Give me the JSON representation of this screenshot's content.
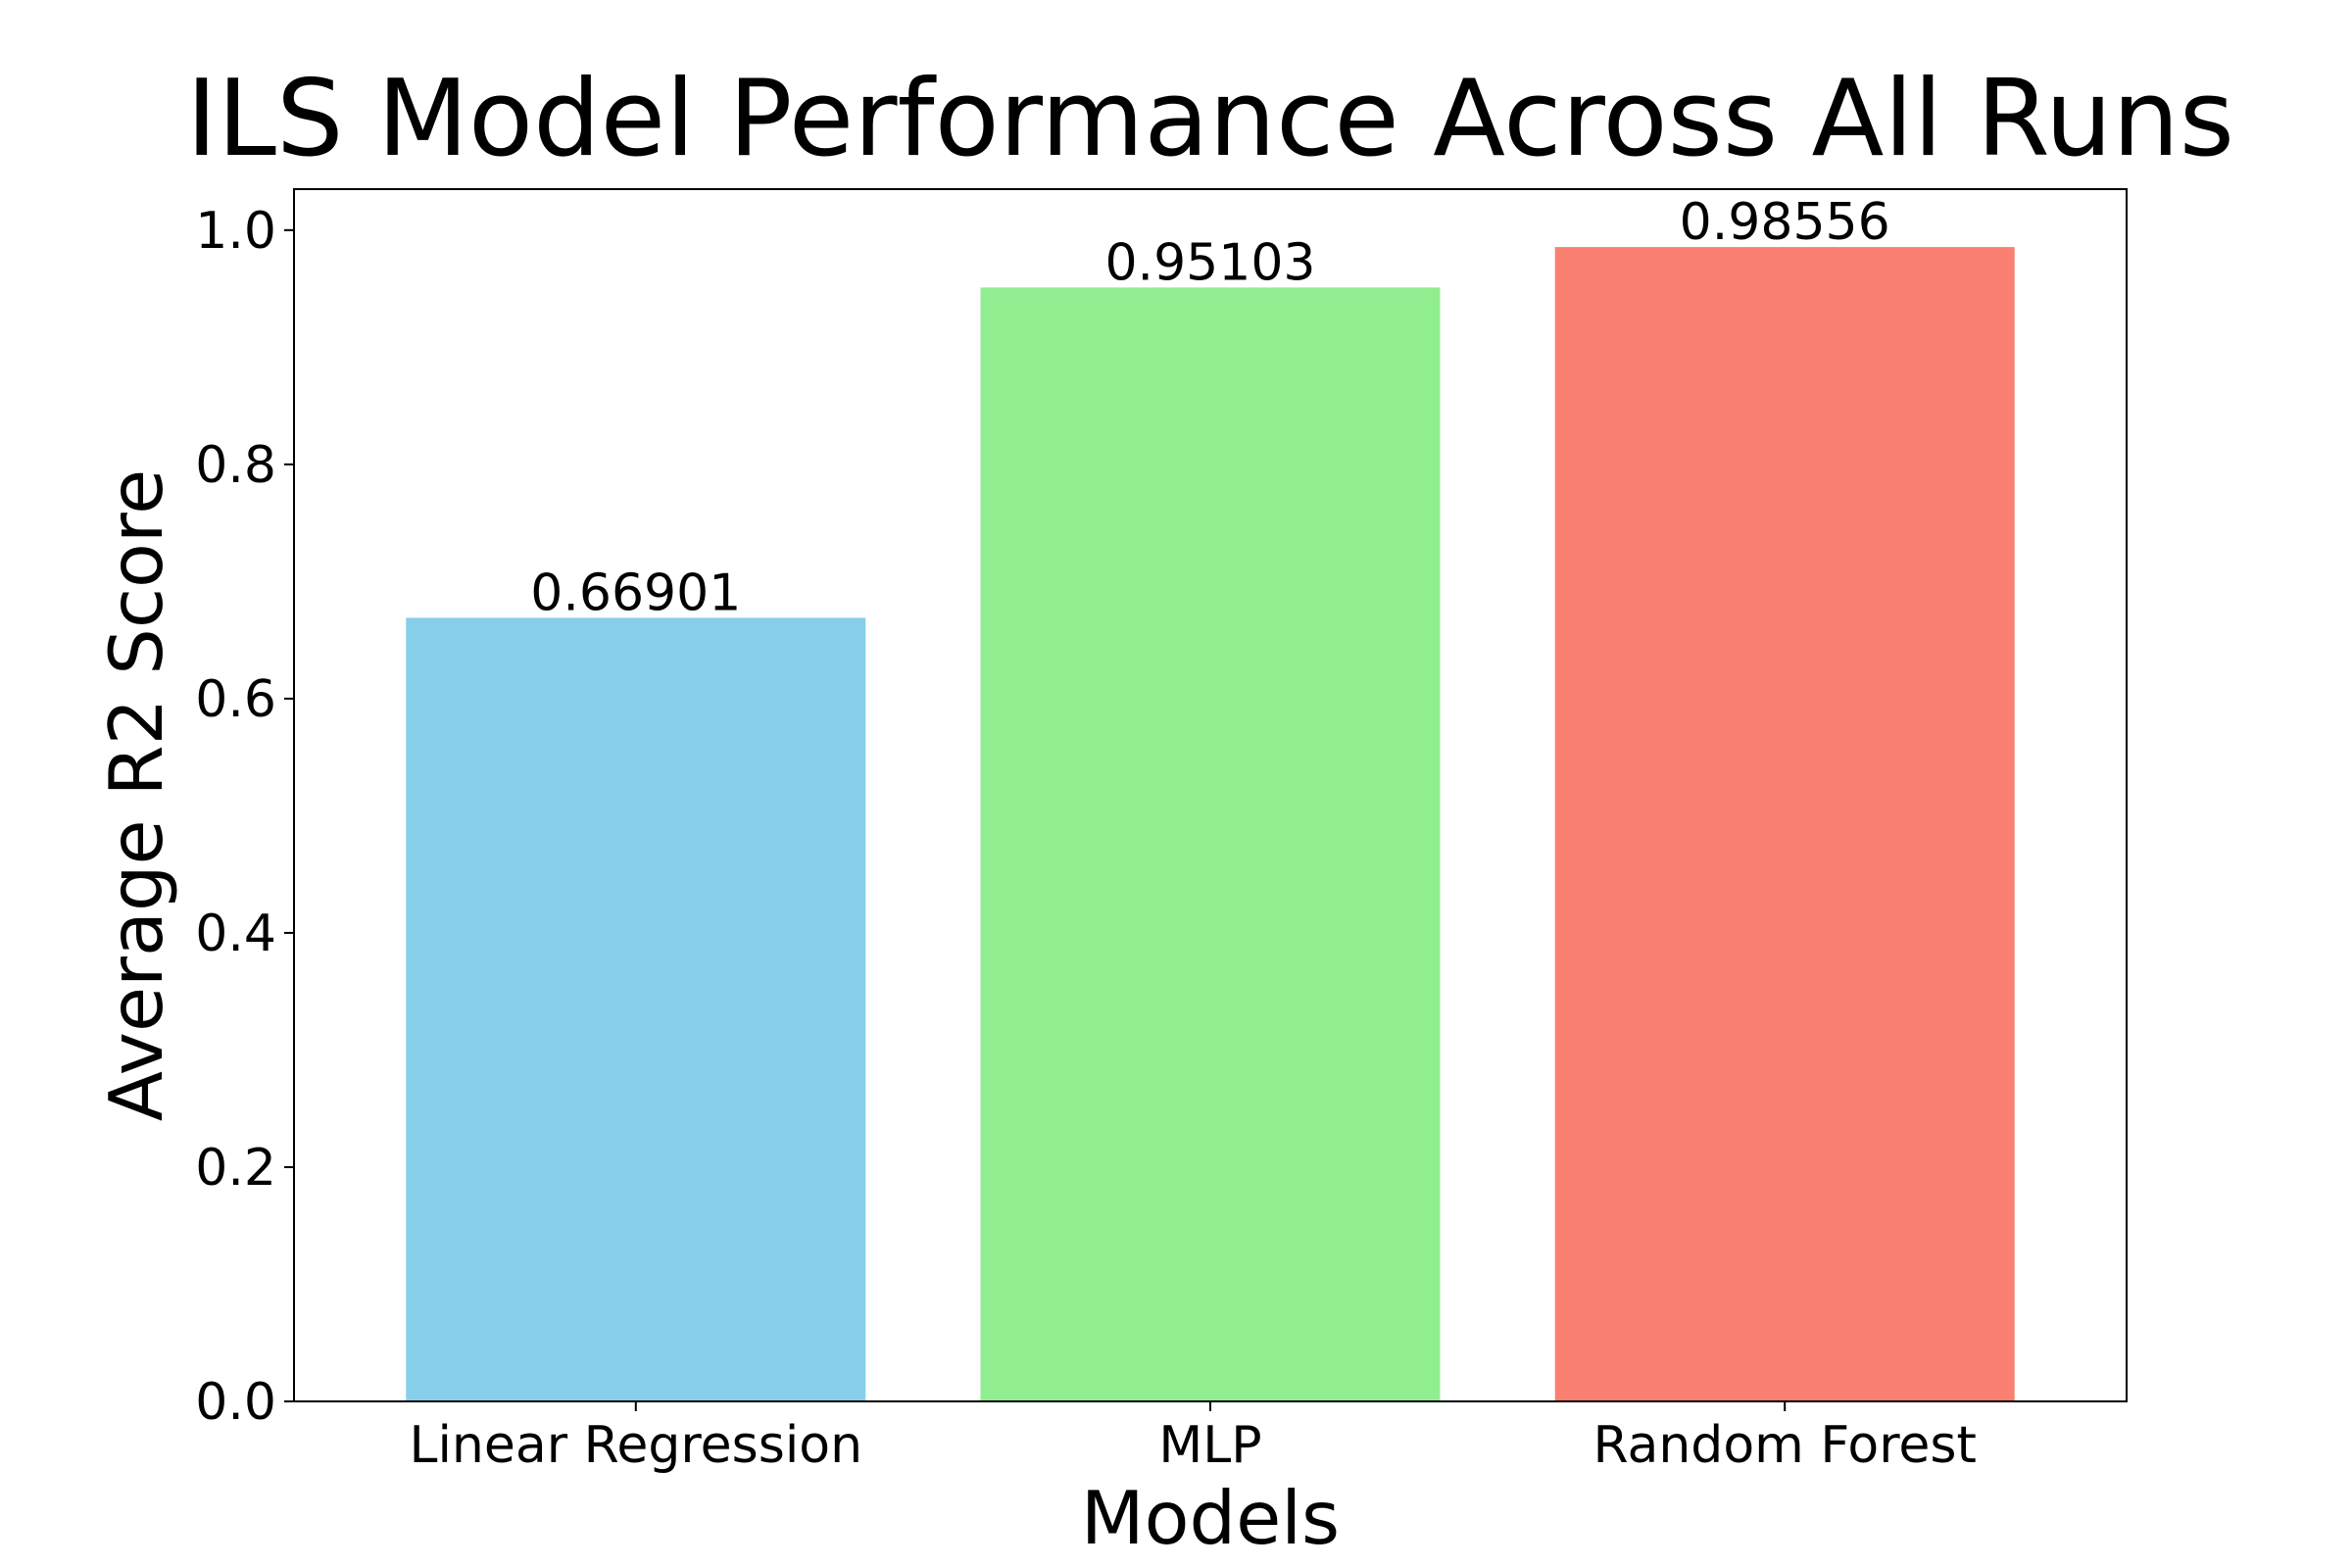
{
  "chart_data": {
    "type": "bar",
    "title": "ILS Model Performance Across All Runs",
    "xlabel": "Models",
    "ylabel": "Average R2 Score",
    "categories": [
      "Linear Regression",
      "MLP",
      "Random Forest"
    ],
    "values": [
      0.66901,
      0.95103,
      0.98556
    ],
    "data_labels": [
      "0.66901",
      "0.95103",
      "0.98556"
    ],
    "colors": [
      "#87CEEB",
      "#90EE90",
      "#FA8072"
    ],
    "ylim": [
      0,
      1.035
    ],
    "yticks": [
      0.0,
      0.2,
      0.4,
      0.6,
      0.8,
      1.0
    ],
    "ytick_labels": [
      "0.0",
      "0.2",
      "0.4",
      "0.6",
      "0.8",
      "1.0"
    ],
    "grid": false,
    "legend": "none"
  }
}
